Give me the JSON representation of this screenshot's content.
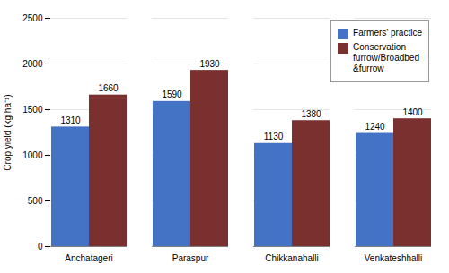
{
  "chart_data": {
    "type": "bar",
    "categories": [
      "Anchatageri",
      "Paraspur",
      "Chikkanahalli",
      "Venkateshhalli"
    ],
    "series": [
      {
        "name": "Farmers' practice",
        "color": "#4472C4",
        "values": [
          1310,
          1590,
          1130,
          1240
        ]
      },
      {
        "name": "Conservation\nfurrow/Broadbed\n&furrow",
        "color": "#7B3030",
        "values": [
          1660,
          1930,
          1380,
          1400
        ]
      }
    ],
    "ylabel": "Crop yield (kg ha⁻¹)",
    "ylim": [
      0,
      2500
    ],
    "yticks": [
      0,
      500,
      1000,
      1500,
      2000,
      2500
    ],
    "grid": true,
    "legend": "upper right",
    "data_labels": true
  }
}
